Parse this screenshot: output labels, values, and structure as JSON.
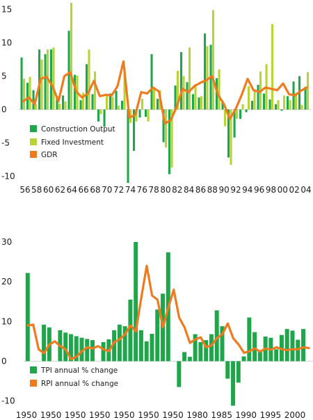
{
  "chart_data": [
    {
      "type": "bar",
      "x_tick_labels": [
        "56",
        "58",
        "60",
        "62",
        "64",
        "66",
        "68",
        "70",
        "72",
        "74",
        "76",
        "78",
        "80",
        "82",
        "84",
        "86",
        "88",
        "90",
        "92",
        "94",
        "96",
        "98",
        "00",
        "02",
        "04"
      ],
      "y_ticks": [
        "15",
        "10",
        "5",
        "0",
        "-5",
        "-10"
      ],
      "ylim": [
        -11,
        16
      ],
      "years": [
        1956,
        1957,
        1958,
        1959,
        1960,
        1961,
        1962,
        1963,
        1964,
        1965,
        1966,
        1967,
        1968,
        1969,
        1970,
        1971,
        1972,
        1973,
        1974,
        1975,
        1976,
        1977,
        1978,
        1979,
        1980,
        1981,
        1982,
        1983,
        1984,
        1985,
        1986,
        1987,
        1988,
        1989,
        1990,
        1991,
        1992,
        1993,
        1994,
        1995,
        1996,
        1997,
        1998,
        1999,
        2000,
        2001,
        2002,
        2003,
        2004
      ],
      "series": [
        {
          "name": "Construction Output",
          "type": "bar",
          "color": "#1fa64a",
          "values": [
            7.8,
            4.0,
            2.9,
            9.0,
            8.3,
            9.0,
            2.0,
            2.1,
            11.8,
            5.2,
            1.4,
            6.8,
            2.3,
            -1.8,
            -2.6,
            2.4,
            2.8,
            1.3,
            -11.0,
            -6.2,
            -1.2,
            -1.1,
            8.3,
            1.6,
            -4.9,
            -9.7,
            3.6,
            8.6,
            4.1,
            2.3,
            1.8,
            11.4,
            9.7,
            4.7,
            1.3,
            -7.2,
            -4.2,
            -1.4,
            -0.4,
            1.3,
            3.7,
            2.4,
            1.5,
            0.8,
            -0.2,
            2.0,
            4.2,
            5.0,
            3.4
          ]
        },
        {
          "name": "Fixed Investment",
          "type": "bar",
          "color": "#b6d433",
          "values": [
            4.6,
            4.9,
            0.8,
            7.5,
            9.0,
            9.3,
            0.9,
            1.2,
            16.0,
            5.1,
            2.5,
            9.0,
            5.7,
            -0.7,
            2.0,
            1.9,
            0.6,
            6.3,
            -2.0,
            -1.8,
            1.6,
            -1.8,
            3.3,
            2.9,
            -5.7,
            -8.7,
            5.8,
            5.0,
            9.3,
            3.8,
            2.0,
            9.5,
            14.9,
            6.0,
            -2.5,
            -8.3,
            -1.4,
            0.8,
            3.5,
            3.0,
            5.7,
            6.8,
            12.8,
            1.4,
            2.1,
            1.4,
            2.5,
            0.7,
            5.6
          ]
        },
        {
          "name": "GDR",
          "type": "line",
          "color": "#f07a1f",
          "values": [
            1.2,
            1.8,
            0.8,
            4.6,
            4.9,
            3.5,
            1.2,
            5.0,
            5.6,
            2.7,
            1.8,
            2.4,
            4.3,
            2.0,
            2.2,
            2.1,
            3.5,
            7.2,
            -1.2,
            -0.8,
            2.6,
            2.4,
            3.3,
            2.7,
            -2.1,
            -1.6,
            0.4,
            3.1,
            2.6,
            3.5,
            4.0,
            4.4,
            5.0,
            2.2,
            0.8,
            -1.4,
            0.1,
            2.2,
            4.6,
            2.9,
            2.6,
            3.3,
            3.1,
            2.9,
            3.9,
            2.3,
            2.1,
            2.8,
            3.3
          ]
        }
      ]
    },
    {
      "type": "bar",
      "x_tick_labels": [
        "1950",
        "1950",
        "1950",
        "1950",
        "1950",
        "1950",
        "1950",
        "1980",
        "1985",
        "1990",
        "1995",
        "2000"
      ],
      "y_ticks": [
        "30",
        "20",
        "10",
        "0",
        "-10"
      ],
      "ylim": [
        -12,
        30
      ],
      "series": [
        {
          "name": "TPI annual % change",
          "type": "bar",
          "color": "#1fa64a",
          "values": [
            22.2,
            0.0,
            0.0,
            9.2,
            8.5,
            0.0,
            7.8,
            7.2,
            6.8,
            6.3,
            5.9,
            5.6,
            5.3,
            0.0,
            4.8,
            5.5,
            7.8,
            9.2,
            8.8,
            15.5,
            30.0,
            7.8,
            5.0,
            6.9,
            13.0,
            17.0,
            27.4,
            0.0,
            -6.5,
            2.3,
            1.1,
            6.8,
            4.8,
            5.3,
            6.8,
            12.8,
            8.8,
            -4.4,
            -11.2,
            -5.4,
            1.2,
            11.0,
            7.3,
            2.5,
            6.2,
            5.9,
            3.0,
            6.6,
            8.1,
            7.7,
            5.4,
            8.1
          ]
        },
        {
          "name": "RPI annual % change",
          "type": "line",
          "color": "#f07a1f",
          "values": [
            9.0,
            9.2,
            3.0,
            2.0,
            4.2,
            5.0,
            3.8,
            3.0,
            0.5,
            1.1,
            2.5,
            3.5,
            3.2,
            3.8,
            3.0,
            2.5,
            4.8,
            5.5,
            6.8,
            9.0,
            7.5,
            16.0,
            24.0,
            16.5,
            15.5,
            8.5,
            13.5,
            18.0,
            11.0,
            8.5,
            4.6,
            5.5,
            6.0,
            3.5,
            4.0,
            5.8,
            6.8,
            9.5,
            5.8,
            4.2,
            2.1,
            2.5,
            3.2,
            2.4,
            3.2,
            2.9,
            3.5,
            3.0,
            2.8,
            3.0,
            3.0,
            3.5,
            3.3
          ]
        }
      ]
    }
  ]
}
